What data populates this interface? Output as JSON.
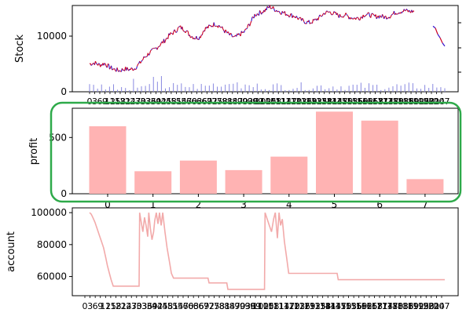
{
  "chart_data": [
    {
      "type": "line",
      "ylabel": "Stock",
      "y_ticks": [
        "0",
        "10000"
      ],
      "ylim": [
        0,
        15500
      ],
      "x_tick_labels": "dense overlapping integer labels (unreadable)",
      "series": [
        {
          "values": [
            5000,
            5200,
            4800,
            5100,
            4400,
            4000,
            3800,
            4100,
            4000,
            4200,
            5100,
            6200,
            7000,
            7600,
            8400,
            9200,
            10200,
            10800,
            11600,
            11200,
            10200,
            9700,
            9800,
            11300,
            11700,
            12200,
            11800,
            10900,
            10200,
            9700,
            10300,
            10800,
            12200,
            13800,
            14200,
            14600,
            15300,
            14800,
            14400,
            14100,
            13800,
            13600,
            13000,
            12600,
            12400,
            12800,
            13400,
            14200,
            14300,
            14000,
            13600,
            13800,
            13400,
            13200,
            13300,
            13900,
            13800,
            13500,
            13600,
            13400,
            13600,
            14200,
            14400,
            14600,
            14400,
            14500
          ],
          "segment2": [
            11800,
            11300,
            10500,
            9700,
            8800,
            8300
          ],
          "color": "#cc0022",
          "alt_color": "#3311cc"
        }
      ],
      "volume_color": "#8888e0",
      "right_axis": {
        "ticks": 3
      }
    },
    {
      "type": "bar",
      "ylabel": "profit",
      "categories": [
        "0",
        "1",
        "2",
        "3",
        "4",
        "5",
        "6",
        "7"
      ],
      "values": [
        600,
        200,
        295,
        210,
        330,
        730,
        650,
        130
      ],
      "y_ticks": [
        "0",
        "500"
      ],
      "ylim": [
        0,
        760
      ],
      "color": "#ffb3b3",
      "highlight_color": "#2eaa4a"
    },
    {
      "type": "line",
      "ylabel": "account",
      "y_ticks": [
        "60000",
        "80000",
        "100000"
      ],
      "ylim": [
        48000,
        103000
      ],
      "x_tick_labels": "dense overlapping integer labels (unreadable)",
      "points": [
        [
          0,
          100000
        ],
        [
          0.3,
          99000
        ],
        [
          0.6,
          97000
        ],
        [
          1.0,
          94000
        ],
        [
          1.4,
          90000
        ],
        [
          1.8,
          86000
        ],
        [
          2.2,
          82000
        ],
        [
          2.6,
          78000
        ],
        [
          3.0,
          72000
        ],
        [
          3.3,
          67000
        ],
        [
          3.6,
          63000
        ],
        [
          4.0,
          58000
        ],
        [
          4.4,
          54000
        ],
        [
          9.2,
          54000
        ],
        [
          9.3,
          100000
        ],
        [
          9.6,
          94000
        ],
        [
          9.9,
          88000
        ],
        [
          10.2,
          97000
        ],
        [
          10.5,
          92000
        ],
        [
          10.8,
          85000
        ],
        [
          11.0,
          100000
        ],
        [
          11.3,
          90000
        ],
        [
          11.6,
          83000
        ],
        [
          11.9,
          88000
        ],
        [
          12.1,
          95000
        ],
        [
          12.4,
          100000
        ],
        [
          12.7,
          93000
        ],
        [
          13.0,
          100000
        ],
        [
          13.3,
          92000
        ],
        [
          13.6,
          100000
        ],
        [
          14.0,
          88000
        ],
        [
          14.4,
          78000
        ],
        [
          14.8,
          70000
        ],
        [
          15.2,
          62000
        ],
        [
          15.6,
          59000
        ],
        [
          22.0,
          59000
        ],
        [
          22.2,
          56000
        ],
        [
          25.5,
          56000
        ],
        [
          25.7,
          52000
        ],
        [
          32.5,
          52000
        ],
        [
          32.6,
          100000
        ],
        [
          33.0,
          96000
        ],
        [
          33.4,
          92000
        ],
        [
          33.8,
          88000
        ],
        [
          34.2,
          96000
        ],
        [
          34.5,
          100000
        ],
        [
          34.9,
          84000
        ],
        [
          35.2,
          100000
        ],
        [
          35.5,
          92000
        ],
        [
          35.8,
          96000
        ],
        [
          36.2,
          82000
        ],
        [
          36.6,
          72000
        ],
        [
          37.0,
          62000
        ],
        [
          46.0,
          62000
        ],
        [
          46.2,
          58000
        ],
        [
          66.0,
          58000
        ]
      ],
      "x_range": [
        0,
        66
      ],
      "color": "#f2aaaa"
    }
  ]
}
